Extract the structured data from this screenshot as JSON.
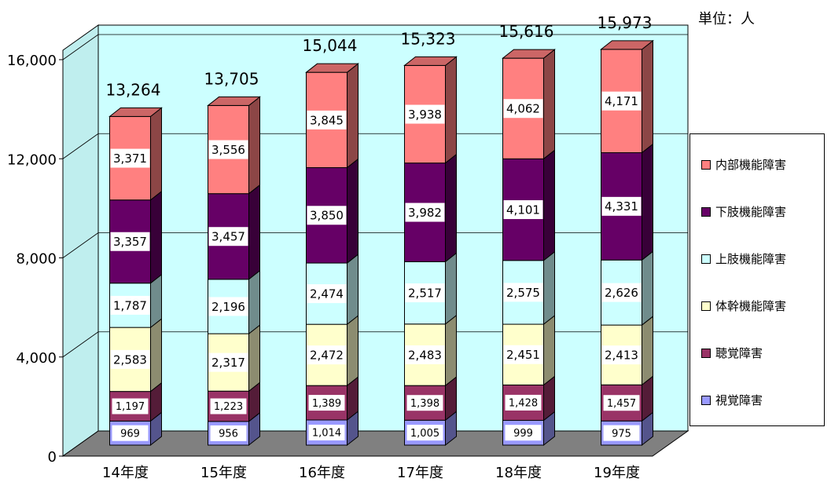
{
  "unit_label": "単位：人",
  "chart_data": {
    "type": "bar",
    "stacked": true,
    "categories": [
      "14年度",
      "15年度",
      "16年度",
      "17年度",
      "18年度",
      "19年度"
    ],
    "series": [
      {
        "name": "視覚障害",
        "color": "#9999ff",
        "values": [
          969,
          956,
          1014,
          1005,
          999,
          975
        ],
        "labels": [
          "969",
          "956",
          "1,014",
          "1,005",
          "999",
          "975"
        ]
      },
      {
        "name": "聴覚障害",
        "color": "#993366",
        "values": [
          1197,
          1223,
          1389,
          1398,
          1428,
          1457
        ],
        "labels": [
          "1,197",
          "1,223",
          "1,389",
          "1,398",
          "1,428",
          "1,457"
        ]
      },
      {
        "name": "体幹機能障害",
        "color": "#ffffcc",
        "values": [
          2583,
          2317,
          2472,
          2483,
          2451,
          2413
        ],
        "labels": [
          "2,583",
          "2,317",
          "2,472",
          "2,483",
          "2,451",
          "2,413"
        ]
      },
      {
        "name": "上肢機能障害",
        "color": "#ccffff",
        "values": [
          1787,
          2196,
          2474,
          2517,
          2575,
          2626
        ],
        "labels": [
          "1,787",
          "2,196",
          "2,474",
          "2,517",
          "2,575",
          "2,626"
        ]
      },
      {
        "name": "下肢機能障害",
        "color": "#660066",
        "values": [
          3357,
          3457,
          3850,
          3982,
          4101,
          4331
        ],
        "labels": [
          "3,357",
          "3,457",
          "3,850",
          "3,982",
          "4,101",
          "4,331"
        ]
      },
      {
        "name": "内部機能障害",
        "color": "#ff8080",
        "values": [
          3371,
          3556,
          3845,
          3938,
          4062,
          4171
        ],
        "labels": [
          "3,371",
          "3,556",
          "3,845",
          "3,938",
          "4,062",
          "4,171"
        ]
      }
    ],
    "totals": [
      "13,264",
      "13,705",
      "15,044",
      "15,323",
      "15,616",
      "15,973"
    ],
    "ylim": [
      0,
      16000
    ],
    "yticks": [
      "0",
      "4,000",
      "8,000",
      "12,000",
      "16,000"
    ],
    "grid": true,
    "legend_position": "right",
    "legend_order": [
      "内部機能障害",
      "下肢機能障害",
      "上肢機能障害",
      "体幹機能障害",
      "聴覚障害",
      "視覚障害"
    ],
    "wall_color": "#ccffff",
    "floor_color": "#808080"
  }
}
